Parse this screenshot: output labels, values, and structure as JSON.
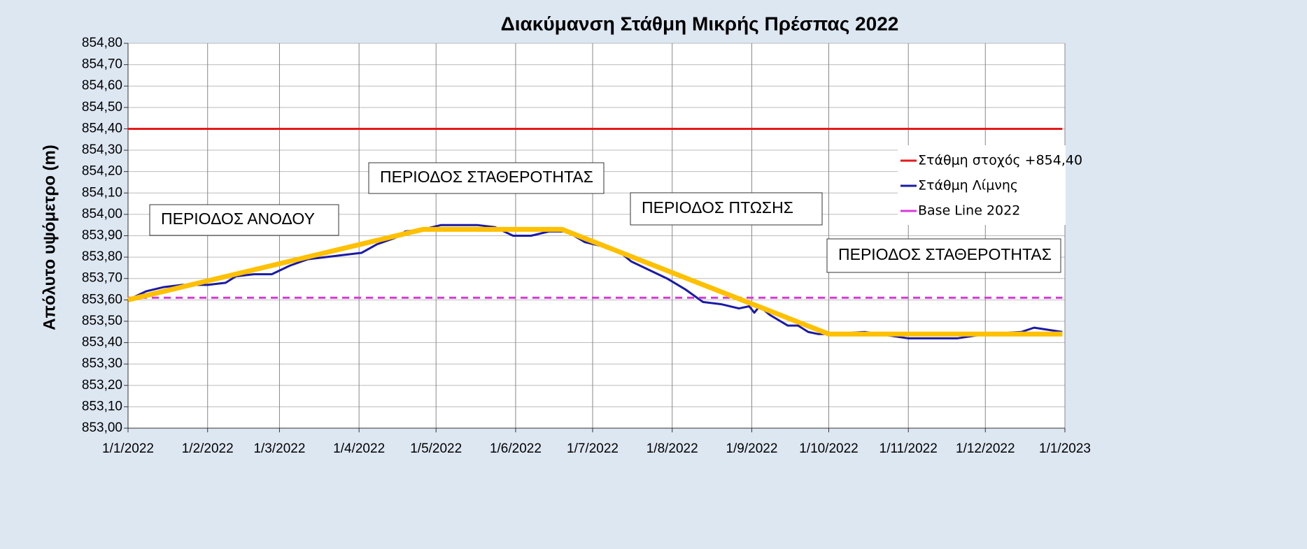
{
  "chart_data": {
    "type": "line",
    "title": "Διακύμανση Στάθμη Μικρής Πρέσπας 2022",
    "ylabel": "Απόλυτο υψόμετρο (m)",
    "xlim": [
      "1/1/2022",
      "1/1/2023"
    ],
    "xticks": [
      "1/1/2022",
      "1/2/2022",
      "1/3/2022",
      "1/4/2022",
      "1/5/2022",
      "1/6/2022",
      "1/7/2022",
      "1/8/2022",
      "1/9/2022",
      "1/10/2022",
      "1/11/2022",
      "1/12/2022",
      "1/1/2023"
    ],
    "ylim": [
      853.0,
      854.8
    ],
    "yticks": [
      {
        "value": 853.0,
        "label": "853,00"
      },
      {
        "value": 853.1,
        "label": "853,10"
      },
      {
        "value": 853.2,
        "label": "853,20"
      },
      {
        "value": 853.3,
        "label": "853,30"
      },
      {
        "value": 853.4,
        "label": "853,40"
      },
      {
        "value": 853.5,
        "label": "853,50"
      },
      {
        "value": 853.6,
        "label": "853,60"
      },
      {
        "value": 853.7,
        "label": "853,70"
      },
      {
        "value": 853.8,
        "label": "853,80"
      },
      {
        "value": 853.9,
        "label": "853,90"
      },
      {
        "value": 854.0,
        "label": "854,00"
      },
      {
        "value": 854.1,
        "label": "854,10"
      },
      {
        "value": 854.2,
        "label": "854,20"
      },
      {
        "value": 854.3,
        "label": "854,30"
      },
      {
        "value": 854.4,
        "label": "854,40"
      },
      {
        "value": 854.5,
        "label": "854,50"
      },
      {
        "value": 854.6,
        "label": "854,60"
      },
      {
        "value": 854.7,
        "label": "854,70"
      },
      {
        "value": 854.8,
        "label": "854,80"
      }
    ],
    "grid": true,
    "legend": "right",
    "series": [
      {
        "name": "Στάθμη στοχός +854,40",
        "color": "#e41a1c",
        "x": [
          "1/1/2022",
          "31/12/2022"
        ],
        "values": [
          854.4,
          854.4
        ]
      },
      {
        "name": "Στάθμη Λίμνης",
        "color": "#1a1aa6",
        "x": [
          "1/1/2022",
          "8/1/2022",
          "15/1/2022",
          "22/1/2022",
          "1/2/2022",
          "8/2/2022",
          "12/2/2022",
          "19/2/2022",
          "26/2/2022",
          "5/3/2022",
          "12/3/2022",
          "19/3/2022",
          "26/3/2022",
          "2/4/2022",
          "8/4/2022",
          "15/4/2022",
          "19/4/2022",
          "26/4/2022",
          "3/5/2022",
          "10/5/2022",
          "17/5/2022",
          "24/5/2022",
          "31/5/2022",
          "7/6/2022",
          "14/6/2022",
          "21/6/2022",
          "28/6/2022",
          "5/7/2022",
          "12/7/2022",
          "16/7/2022",
          "23/7/2022",
          "30/7/2022",
          "6/8/2022",
          "13/8/2022",
          "20/8/2022",
          "27/8/2022",
          "31/8/2022",
          "2/9/2022",
          "4/9/2022",
          "8/9/2022",
          "15/9/2022",
          "19/9/2022",
          "23/9/2022",
          "27/9/2022",
          "1/10/2022",
          "15/10/2022",
          "1/11/2022",
          "20/11/2022",
          "1/12/2022",
          "15/12/2022",
          "20/12/2022",
          "31/12/2022"
        ],
        "values": [
          853.6,
          853.64,
          853.66,
          853.67,
          853.67,
          853.68,
          853.71,
          853.72,
          853.72,
          853.76,
          853.79,
          853.8,
          853.81,
          853.82,
          853.86,
          853.89,
          853.92,
          853.93,
          853.95,
          853.95,
          853.95,
          853.94,
          853.9,
          853.9,
          853.92,
          853.92,
          853.87,
          853.85,
          853.82,
          853.78,
          853.74,
          853.7,
          853.65,
          853.59,
          853.58,
          853.56,
          853.57,
          853.54,
          853.57,
          853.53,
          853.48,
          853.48,
          853.45,
          853.44,
          853.44,
          853.45,
          853.42,
          853.42,
          853.44,
          853.45,
          853.47,
          853.45
        ]
      },
      {
        "name": "Base Line 2022",
        "color": "#d63ad6",
        "x": [
          "1/1/2022",
          "31/12/2022"
        ],
        "values": [
          853.61,
          853.61
        ]
      },
      {
        "color": "#ffc000",
        "x": [
          "1/1/2022",
          "26/4/2022",
          "19/6/2022",
          "1/10/2022",
          "31/12/2022"
        ],
        "values": [
          853.6,
          853.93,
          853.93,
          853.44,
          853.44
        ]
      }
    ],
    "annotations": [
      {
        "text": "ΠΕΡΙΟΔΟΣ ΑΝΟΔΟΥ"
      },
      {
        "text": "ΠΕΡΙΟΔΟΣ ΣΤΑΘΕΡΟΤΗΤΑΣ"
      },
      {
        "text": "ΠΕΡΙΟΔΟΣ ΠΤΩΣΗΣ"
      },
      {
        "text": "ΠΕΡΙΟΔΟΣ ΣΤΑΘΕΡΟΤΗΤΑΣ"
      }
    ]
  }
}
